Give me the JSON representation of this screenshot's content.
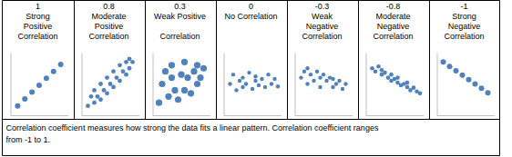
{
  "chart_data": [
    {
      "type": "scatter",
      "title": "1",
      "subtitle": [
        "Strong",
        "Positive",
        "Correlation"
      ],
      "color": "#4f81bd",
      "marker": "circle",
      "tick_labels": false,
      "xlim": [
        0,
        8
      ],
      "ylim": [
        0,
        10
      ],
      "x": [
        1,
        2,
        3,
        4,
        5,
        6,
        7
      ],
      "values": [
        1.5,
        2.6,
        3.7,
        4.8,
        5.9,
        7,
        8.1
      ]
    },
    {
      "type": "scatter",
      "title": "0.8",
      "subtitle": [
        "Moderate",
        "Positive",
        "Correlation"
      ],
      "color": "#4f81bd",
      "marker": "circle",
      "tick_labels": false,
      "xlim": [
        0,
        9
      ],
      "ylim": [
        0,
        10
      ],
      "x": [
        1,
        1.5,
        2,
        2,
        2.5,
        3,
        3,
        3.5,
        4,
        4,
        4.5,
        5,
        5,
        5.5,
        6,
        6,
        6.5,
        7,
        7,
        7.5,
        7.5,
        8
      ],
      "values": [
        1.5,
        3,
        2,
        4,
        3,
        2.5,
        5,
        4,
        3.5,
        6,
        5,
        4.5,
        7,
        6,
        5.5,
        8,
        7,
        6.5,
        8.5,
        7.5,
        9,
        8.5
      ]
    },
    {
      "type": "scatter",
      "title": "0.3",
      "subtitle": [
        "Weak Positive",
        "Correlation"
      ],
      "color": "#4f81bd",
      "marker": "circle",
      "tick_labels": false,
      "xlim": [
        0,
        9
      ],
      "ylim": [
        0,
        10
      ],
      "x": [
        1,
        1.5,
        2,
        2.5,
        3,
        3,
        3.5,
        4,
        4.5,
        5,
        5,
        5.5,
        6,
        6.5,
        7,
        7,
        7.5,
        8
      ],
      "values": [
        2,
        5,
        7,
        3,
        6,
        8,
        4,
        2.5,
        6.5,
        8.5,
        4,
        6,
        3.5,
        7,
        5,
        8,
        6,
        7.5
      ]
    },
    {
      "type": "scatter",
      "title": "0",
      "subtitle": [
        "No Correlation"
      ],
      "color": "#4f81bd",
      "marker": "circle",
      "tick_labels": false,
      "xlim": [
        0,
        9
      ],
      "ylim": [
        0,
        10
      ],
      "x": [
        1,
        1.5,
        2,
        2.5,
        3,
        3,
        3.5,
        4,
        4.5,
        5,
        5,
        5.5,
        6,
        6.5,
        7,
        7.5,
        8,
        8.5
      ],
      "values": [
        5,
        6.5,
        4,
        5.5,
        6,
        4.5,
        5,
        6.8,
        4.2,
        5.5,
        6.2,
        4.8,
        5.8,
        4.5,
        6.5,
        5,
        5.8,
        4.6
      ]
    },
    {
      "type": "scatter",
      "title": "-0.3",
      "subtitle": [
        "Weak",
        "Negative",
        "Correlation"
      ],
      "color": "#4f81bd",
      "marker": "circle",
      "tick_labels": false,
      "xlim": [
        0,
        9
      ],
      "ylim": [
        0,
        10
      ],
      "x": [
        1,
        1.5,
        2,
        2,
        2.5,
        3,
        3.5,
        4,
        4,
        4.5,
        5,
        5.5,
        6,
        6,
        6.5,
        7,
        7.5,
        8
      ],
      "values": [
        6,
        7,
        5,
        7.5,
        6.5,
        5.5,
        7,
        6,
        4.5,
        6.5,
        5.5,
        6,
        4.5,
        5.8,
        5,
        5.5,
        4.2,
        5
      ]
    },
    {
      "type": "scatter",
      "title": "-0.8",
      "subtitle": [
        "Moderate",
        "Negative",
        "Correlation"
      ],
      "color": "#4f81bd",
      "marker": "circle",
      "tick_labels": false,
      "xlim": [
        0,
        9
      ],
      "ylim": [
        0,
        10
      ],
      "x": [
        1,
        1.5,
        2,
        2.5,
        2.5,
        3,
        3.5,
        4,
        4,
        4.5,
        5,
        5,
        5.5,
        6,
        6.5,
        6.5,
        7,
        7.5,
        8,
        8.5
      ],
      "values": [
        7.5,
        7,
        7.8,
        6.5,
        7.2,
        6.8,
        6,
        6.5,
        5.5,
        5.8,
        5.2,
        6,
        4.8,
        5,
        4.5,
        5.2,
        4,
        4.4,
        3.8,
        3.5
      ]
    },
    {
      "type": "scatter",
      "title": "-1",
      "subtitle": [
        "Strong",
        "Negative",
        "Correlation"
      ],
      "color": "#4f81bd",
      "marker": "circle",
      "tick_labels": false,
      "xlim": [
        0,
        9
      ],
      "ylim": [
        0,
        10
      ],
      "x": [
        1,
        2,
        3,
        4,
        5,
        6,
        7,
        8
      ],
      "values": [
        8.5,
        7.8,
        7.1,
        6.4,
        5.7,
        5,
        4.3,
        3.6
      ]
    }
  ],
  "caption": [
    "Correlation coefficient measures how strong the data fits a linear pattern.  Correlation coefficient ranges",
    "from -1 to 1."
  ]
}
